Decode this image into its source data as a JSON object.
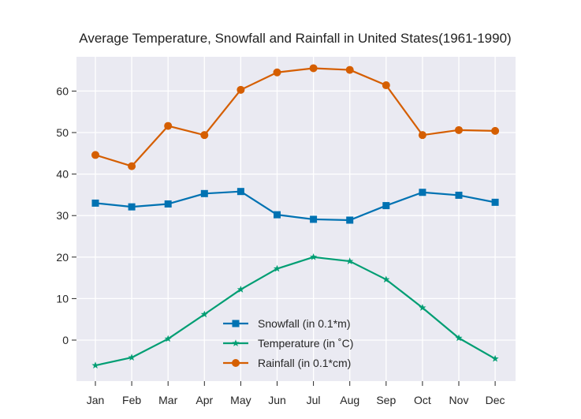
{
  "chart_data": {
    "type": "line",
    "title": "Average Temperature, Snowfall and Rainfall in United States(1961-1990)",
    "xlabel": "",
    "ylabel": "",
    "categories": [
      "Jan",
      "Feb",
      "Mar",
      "Apr",
      "May",
      "Jun",
      "Jul",
      "Aug",
      "Sep",
      "Oct",
      "Nov",
      "Dec"
    ],
    "ylim": [
      -10,
      69
    ],
    "yticks": [
      0,
      10,
      20,
      30,
      40,
      50,
      60
    ],
    "grid": true,
    "legend_position": "lower center",
    "series": [
      {
        "name": "Snowfall (in 0.1*m)",
        "color": "#0072B2",
        "marker": "square",
        "values": [
          33.0,
          32.1,
          32.8,
          35.3,
          35.8,
          30.2,
          29.1,
          28.9,
          32.4,
          35.6,
          34.9,
          33.2
        ]
      },
      {
        "name": "Temperature (in  ˚C)",
        "color": "#009E73",
        "marker": "star",
        "values": [
          -6.1,
          -4.2,
          0.3,
          6.2,
          12.2,
          17.2,
          20.0,
          19.0,
          14.6,
          7.8,
          0.5,
          -4.5
        ]
      },
      {
        "name": "Rainfall (in 0.1*cm)",
        "color": "#D55E00",
        "marker": "circle",
        "values": [
          44.6,
          41.9,
          51.6,
          49.4,
          60.3,
          64.5,
          65.5,
          65.1,
          61.4,
          49.4,
          50.6,
          50.4
        ]
      }
    ]
  }
}
